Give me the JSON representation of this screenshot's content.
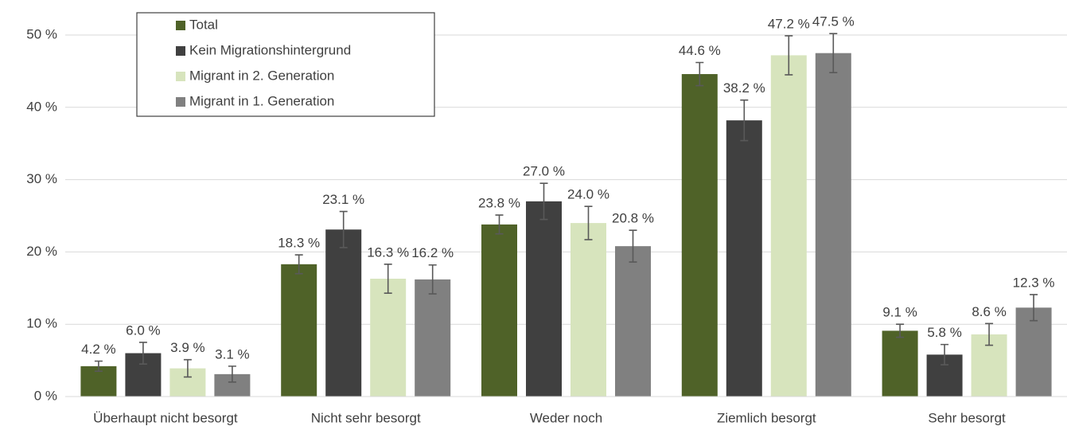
{
  "chart_data": {
    "type": "bar",
    "categories": [
      "Überhaupt nicht besorgt",
      "Nicht sehr besorgt",
      "Weder noch",
      "Ziemlich besorgt",
      "Sehr besorgt"
    ],
    "series": [
      {
        "name": "Total",
        "color": "#4f6228",
        "values": [
          4.2,
          18.3,
          23.8,
          44.6,
          9.1
        ],
        "value_labels": [
          "4.2 %",
          "18.3 %",
          "23.8 %",
          "44.6 %",
          "9.1 %"
        ],
        "errors": [
          0.7,
          1.3,
          1.3,
          1.6,
          0.9
        ]
      },
      {
        "name": "Kein Migrationshintergrund",
        "color": "#404040",
        "values": [
          6.0,
          23.1,
          27.0,
          38.2,
          5.8
        ],
        "value_labels": [
          "6.0 %",
          "23.1 %",
          "27.0 %",
          "38.2 %",
          "5.8 %"
        ],
        "errors": [
          1.5,
          2.5,
          2.5,
          2.8,
          1.4
        ]
      },
      {
        "name": "Migrant in 2. Generation",
        "color": "#d7e4bd",
        "values": [
          3.9,
          16.3,
          24.0,
          47.2,
          8.6
        ],
        "value_labels": [
          "3.9 %",
          "16.3 %",
          "24.0 %",
          "47.2 %",
          "8.6 %"
        ],
        "errors": [
          1.2,
          2.0,
          2.3,
          2.7,
          1.5
        ]
      },
      {
        "name": "Migrant in 1. Generation",
        "color": "#808080",
        "values": [
          3.1,
          16.2,
          20.8,
          47.5,
          12.3
        ],
        "value_labels": [
          "3.1 %",
          "16.2 %",
          "20.8 %",
          "47.5 %",
          "12.3 %"
        ],
        "errors": [
          1.1,
          2.0,
          2.2,
          2.7,
          1.8
        ]
      }
    ],
    "ylim": [
      0,
      50
    ],
    "yticks": [
      {
        "value": 0,
        "label": "0 %"
      },
      {
        "value": 10,
        "label": "10 %"
      },
      {
        "value": 20,
        "label": "20 %"
      },
      {
        "value": 30,
        "label": "30 %"
      },
      {
        "value": 40,
        "label": "40 %"
      },
      {
        "value": 50,
        "label": "50 %"
      }
    ],
    "grid": true,
    "legend": "upper-left"
  }
}
